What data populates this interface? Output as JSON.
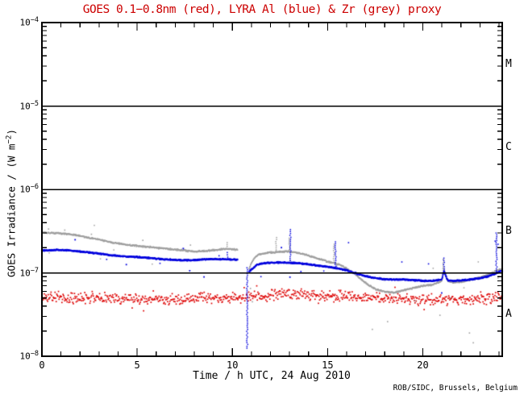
{
  "title": {
    "text": "GOES 0.1−0.8nm (red), LYRA Al (blue) & Zr (grey) proxy",
    "color": "#cc0000"
  },
  "credit": {
    "text": "ROB/SIDC, Brussels, Belgium"
  },
  "chart_data": {
    "type": "scatter",
    "title": "GOES 0.1−0.8nm (red), LYRA Al (blue) & Zr (grey) proxy",
    "xlabel": "Time / h UTC, 24 Aug 2010",
    "ylabel": {
      "prefix": "GOES Irradiance / (W m",
      "sup": "−2",
      "suffix": ")"
    },
    "x_range": [
      0,
      24.17
    ],
    "y_exp_range": [
      -8,
      -4
    ],
    "x_major_ticks": [
      0,
      5,
      10,
      15,
      20
    ],
    "x_minor_step": 1,
    "y_tick_labels": [
      {
        "exp": -4,
        "sup": "−4"
      },
      {
        "exp": -5,
        "sup": "−5"
      },
      {
        "exp": -6,
        "sup": "−6"
      },
      {
        "exp": -7,
        "sup": "−7"
      },
      {
        "exp": -8,
        "sup": "−8"
      }
    ],
    "hlines_exp": [
      -5,
      -6,
      -7
    ],
    "flare_classes": [
      {
        "label": "M",
        "exp_center": -4.5
      },
      {
        "label": "C",
        "exp_center": -5.5
      },
      {
        "label": "B",
        "exp_center": -6.5
      },
      {
        "label": "A",
        "exp_center": -7.5
      }
    ],
    "grid": false,
    "axis_color": "#000000",
    "series": [
      {
        "name": "GOES 0.1-0.8nm",
        "color": "#dd0000",
        "render": "noisy-band",
        "cadence_h": 0.03,
        "jitter_dex": 0.08,
        "dot": 1.7,
        "outlier_prob": 0.018,
        "outlier_dex": 0.12,
        "gaps": [],
        "points": [
          [
            0,
            5.2e-08
          ],
          [
            1,
            5.1e-08
          ],
          [
            2,
            5e-08
          ],
          [
            3,
            5e-08
          ],
          [
            4,
            4.9e-08
          ],
          [
            5,
            4.9e-08
          ],
          [
            6,
            4.8e-08
          ],
          [
            7,
            4.8e-08
          ],
          [
            8,
            4.9e-08
          ],
          [
            9,
            5e-08
          ],
          [
            10,
            5e-08
          ],
          [
            10.5,
            4.9e-08
          ],
          [
            11,
            5.1e-08
          ],
          [
            11.5,
            5.3e-08
          ],
          [
            12,
            5.5e-08
          ],
          [
            12.5,
            5.6e-08
          ],
          [
            13,
            5.6e-08
          ],
          [
            13.5,
            5.5e-08
          ],
          [
            14,
            5.4e-08
          ],
          [
            15,
            5.3e-08
          ],
          [
            16,
            5.2e-08
          ],
          [
            17,
            5.1e-08
          ],
          [
            18,
            5e-08
          ],
          [
            19,
            4.9e-08
          ],
          [
            20,
            4.8e-08
          ],
          [
            21,
            4.8e-08
          ],
          [
            22,
            4.7e-08
          ],
          [
            23,
            4.9e-08
          ],
          [
            24.17,
            5e-08
          ]
        ]
      },
      {
        "name": "LYRA Zr proxy",
        "color": "#9e9e9e",
        "render": "dense-line",
        "cadence_h": 0.016,
        "jitter_dex": 0.012,
        "dot": 1.5,
        "outlier_prob": 0.01,
        "outlier_dex": 0.22,
        "gaps": [
          [
            10.28,
            10.88
          ]
        ],
        "points": [
          [
            0,
            3.05e-07
          ],
          [
            0.5,
            3e-07
          ],
          [
            1,
            2.97e-07
          ],
          [
            1.5,
            2.9e-07
          ],
          [
            2,
            2.78e-07
          ],
          [
            2.5,
            2.62e-07
          ],
          [
            3,
            2.5e-07
          ],
          [
            3.5,
            2.36e-07
          ],
          [
            4,
            2.25e-07
          ],
          [
            4.5,
            2.16e-07
          ],
          [
            5,
            2.1e-07
          ],
          [
            5.5,
            2.05e-07
          ],
          [
            6,
            2e-07
          ],
          [
            6.5,
            1.95e-07
          ],
          [
            7,
            1.9e-07
          ],
          [
            7.5,
            1.85e-07
          ],
          [
            8,
            1.8e-07
          ],
          [
            8.5,
            1.82e-07
          ],
          [
            9,
            1.87e-07
          ],
          [
            9.5,
            1.92e-07
          ],
          [
            9.9,
            1.95e-07
          ],
          [
            10.27,
            1.88e-07
          ],
          [
            10.88,
            1.12e-07
          ],
          [
            11,
            1.3e-07
          ],
          [
            11.2,
            1.55e-07
          ],
          [
            11.4,
            1.66e-07
          ],
          [
            11.7,
            1.72e-07
          ],
          [
            12,
            1.75e-07
          ],
          [
            12.5,
            1.78e-07
          ],
          [
            13,
            1.8e-07
          ],
          [
            13.3,
            1.76e-07
          ],
          [
            13.8,
            1.66e-07
          ],
          [
            14.2,
            1.56e-07
          ],
          [
            14.6,
            1.46e-07
          ],
          [
            15,
            1.36e-07
          ],
          [
            15.4,
            1.3e-07
          ],
          [
            15.8,
            1.2e-07
          ],
          [
            16.2,
            1.05e-07
          ],
          [
            16.5,
            9.5e-08
          ],
          [
            16.8,
            8.2e-08
          ],
          [
            17.2,
            7e-08
          ],
          [
            17.6,
            6.3e-08
          ],
          [
            18,
            5.9e-08
          ],
          [
            18.5,
            5.8e-08
          ],
          [
            19,
            6.2e-08
          ],
          [
            19.5,
            6.6e-08
          ],
          [
            20,
            7e-08
          ],
          [
            20.5,
            7.2e-08
          ],
          [
            21,
            8e-08
          ],
          [
            21.1,
            1.12e-07
          ],
          [
            21.3,
            8e-08
          ],
          [
            21.6,
            7.6e-08
          ],
          [
            22,
            7.8e-08
          ],
          [
            22.5,
            8.2e-08
          ],
          [
            23,
            8.8e-08
          ],
          [
            23.4,
            9.5e-08
          ],
          [
            23.8,
            1.04e-07
          ],
          [
            24.17,
            1.12e-07
          ]
        ]
      },
      {
        "name": "LYRA Al proxy",
        "color": "#0000dd",
        "render": "dense-line",
        "cadence_h": 0.016,
        "jitter_dex": 0.01,
        "dot": 1.8,
        "outlier_prob": 0.008,
        "outlier_dex": 0.18,
        "gaps": [
          [
            10.28,
            10.88
          ]
        ],
        "points": [
          [
            0,
            1.85e-07
          ],
          [
            0.5,
            1.87e-07
          ],
          [
            1,
            1.88e-07
          ],
          [
            1.5,
            1.85e-07
          ],
          [
            2,
            1.8e-07
          ],
          [
            2.5,
            1.75e-07
          ],
          [
            3,
            1.7e-07
          ],
          [
            3.5,
            1.64e-07
          ],
          [
            4,
            1.59e-07
          ],
          [
            4.5,
            1.56e-07
          ],
          [
            5,
            1.55e-07
          ],
          [
            5.5,
            1.52e-07
          ],
          [
            6,
            1.48e-07
          ],
          [
            6.5,
            1.45e-07
          ],
          [
            7,
            1.43e-07
          ],
          [
            7.5,
            1.41e-07
          ],
          [
            8,
            1.42e-07
          ],
          [
            8.5,
            1.45e-07
          ],
          [
            9,
            1.47e-07
          ],
          [
            9.5,
            1.45e-07
          ],
          [
            10,
            1.44e-07
          ],
          [
            10.27,
            1.43e-07
          ],
          [
            10.88,
            1.04e-07
          ],
          [
            11.1,
            1.15e-07
          ],
          [
            11.3,
            1.25e-07
          ],
          [
            11.6,
            1.3e-07
          ],
          [
            12,
            1.32e-07
          ],
          [
            12.5,
            1.33e-07
          ],
          [
            13,
            1.32e-07
          ],
          [
            13.5,
            1.3e-07
          ],
          [
            14,
            1.27e-07
          ],
          [
            14.5,
            1.22e-07
          ],
          [
            15,
            1.18e-07
          ],
          [
            15.5,
            1.13e-07
          ],
          [
            16,
            1.07e-07
          ],
          [
            16.4,
            1e-07
          ],
          [
            16.8,
            9.4e-08
          ],
          [
            17.2,
            8.9e-08
          ],
          [
            17.6,
            8.6e-08
          ],
          [
            18,
            8.4e-08
          ],
          [
            18.5,
            8.3e-08
          ],
          [
            19,
            8.3e-08
          ],
          [
            19.5,
            8.2e-08
          ],
          [
            20,
            8e-08
          ],
          [
            20.5,
            8e-08
          ],
          [
            21,
            8.3e-08
          ],
          [
            21.1,
            1.05e-07
          ],
          [
            21.3,
            8.2e-08
          ],
          [
            21.6,
            8e-08
          ],
          [
            22,
            8.1e-08
          ],
          [
            22.5,
            8.3e-08
          ],
          [
            23,
            8.6e-08
          ],
          [
            23.4,
            9e-08
          ],
          [
            23.8,
            9.8e-08
          ],
          [
            24.17,
            1.06e-07
          ]
        ]
      }
    ],
    "spikes": [
      {
        "x": 9.7,
        "color": "#9e9e9e",
        "v1": 1.95e-07,
        "v2": 2.3e-07
      },
      {
        "x": 9.75,
        "color": "#0000dd",
        "v1": 1.45e-07,
        "v2": 1.75e-07
      },
      {
        "x": 10.78,
        "color": "#0000dd",
        "v1": 1.15e-07,
        "v2": 1.25e-08
      },
      {
        "x": 12.3,
        "color": "#9e9e9e",
        "v1": 1.78e-07,
        "v2": 2.65e-07
      },
      {
        "x": 13.0,
        "color": "#9e9e9e",
        "v1": 1.8e-07,
        "v2": 2.6e-07
      },
      {
        "x": 13.05,
        "color": "#0000dd",
        "v1": 1.33e-07,
        "v2": 3.3e-07
      },
      {
        "x": 15.32,
        "color": "#9e9e9e",
        "v1": 1.32e-07,
        "v2": 2.2e-07
      },
      {
        "x": 15.42,
        "color": "#0000dd",
        "v1": 1.14e-07,
        "v2": 2.35e-07
      },
      {
        "x": 21.08,
        "color": "#9e9e9e",
        "v1": 1.12e-07,
        "v2": 1.45e-07
      },
      {
        "x": 21.12,
        "color": "#0000dd",
        "v1": 1.05e-07,
        "v2": 1.5e-07
      },
      {
        "x": 23.87,
        "color": "#0000dd",
        "v1": 1.06e-07,
        "v2": 3e-07
      }
    ],
    "extra_dots": [
      {
        "color": "#9e9e9e",
        "points": [
          [
            0.35,
            3.35e-07
          ],
          [
            1.2,
            3.25e-07
          ],
          [
            2.6,
            2.9e-07
          ],
          [
            5.3,
            2.45e-07
          ],
          [
            7.8,
            2.15e-07
          ],
          [
            10.95,
            6.5e-08
          ],
          [
            11.05,
            4.5e-08
          ],
          [
            17.35,
            2.1e-08
          ],
          [
            18.15,
            2.6e-08
          ],
          [
            19.6,
            4.6e-08
          ],
          [
            20.9,
            3.1e-08
          ],
          [
            22.45,
            1.9e-08
          ],
          [
            22.65,
            1.45e-08
          ]
        ]
      },
      {
        "color": "#0000dd",
        "points": [
          [
            3.4,
            1.45e-07
          ],
          [
            6.2,
            1.3e-07
          ],
          [
            9.3,
            1.6e-07
          ],
          [
            11.5,
            9e-08
          ],
          [
            14.8,
            1.05e-07
          ],
          [
            16.1,
            2.3e-07
          ],
          [
            18.9,
            1.35e-07
          ],
          [
            20.3,
            1.28e-07
          ],
          [
            23.8,
            2.4e-07
          ],
          [
            23.95,
            2.2e-07
          ]
        ]
      }
    ]
  }
}
